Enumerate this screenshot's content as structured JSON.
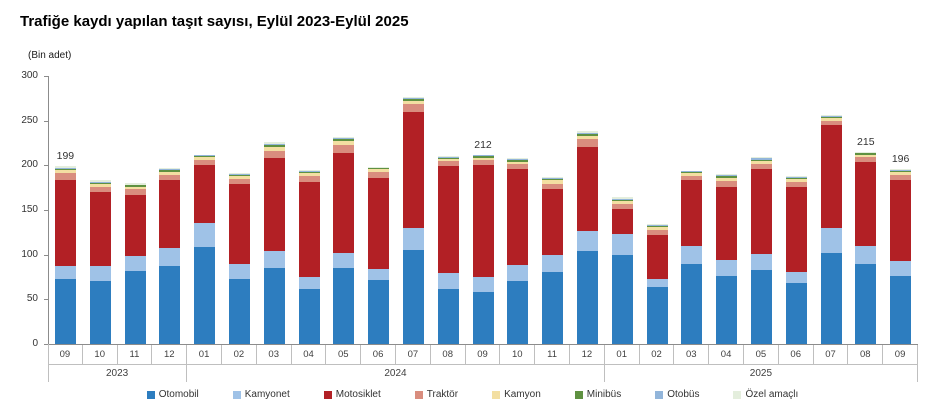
{
  "chart": {
    "title": "Trafiğe kaydı yapılan taşıt sayısı, Eylül 2023-Eylül 2025",
    "unit_label": "(Bin adet)"
  },
  "chart_data": {
    "type": "bar",
    "stacked": true,
    "title": "Trafiğe kaydı yapılan taşıt sayısı, Eylül 2023-Eylül 2025",
    "ylabel": "(Bin adet)",
    "ylim": [
      0,
      300
    ],
    "yticks": [
      0,
      50,
      100,
      150,
      200,
      250,
      300
    ],
    "grid": false,
    "legend_position": "bottom",
    "x_groups": [
      {
        "year": "2023",
        "months": [
          "09",
          "10",
          "11",
          "12"
        ]
      },
      {
        "year": "2024",
        "months": [
          "01",
          "02",
          "03",
          "04",
          "05",
          "06",
          "07",
          "08",
          "09",
          "10",
          "11",
          "12"
        ]
      },
      {
        "year": "2025",
        "months": [
          "01",
          "02",
          "03",
          "04",
          "05",
          "06",
          "07",
          "08",
          "09"
        ]
      }
    ],
    "series": [
      {
        "name": "Otomobil",
        "key": "otomobil",
        "color": "#2d7dbf",
        "values": [
          73,
          70,
          82,
          87,
          108,
          73,
          85,
          61,
          85,
          72,
          105,
          62,
          58,
          70,
          80,
          104,
          100,
          64,
          90,
          76,
          83,
          68,
          102,
          90,
          76
        ]
      },
      {
        "name": "Kamyonet",
        "key": "kamyonet",
        "color": "#9fc2e7",
        "values": [
          14,
          17,
          16,
          20,
          27,
          17,
          19,
          14,
          17,
          12,
          25,
          17,
          17,
          18,
          20,
          22,
          23,
          9,
          20,
          18,
          18,
          12,
          28,
          20,
          17
        ]
      },
      {
        "name": "Motosiklet",
        "key": "motosiklet",
        "color": "#b22025",
        "values": [
          96,
          83,
          69,
          76,
          65,
          89,
          104,
          106,
          112,
          102,
          130,
          120,
          125,
          108,
          73,
          95,
          28,
          49,
          73,
          82,
          95,
          96,
          115,
          93.5,
          90
        ]
      },
      {
        "name": "Traktör",
        "key": "traktor",
        "color": "#d98d7e",
        "values": [
          8,
          6,
          6,
          6,
          5.8,
          6,
          8,
          7,
          9,
          6.5,
          8.5,
          5.5,
          5.5,
          5.5,
          6.5,
          8.5,
          5.5,
          5.5,
          5.5,
          6.5,
          5,
          5.5,
          5,
          6,
          6
        ]
      },
      {
        "name": "Kamyon",
        "key": "kamyon",
        "color": "#f3dfa2",
        "values": [
          3.5,
          3,
          3,
          4,
          3,
          3,
          4.5,
          3.5,
          4,
          3,
          3.5,
          2.5,
          2.8,
          2.7,
          3.5,
          3.7,
          3,
          3,
          2.7,
          3.5,
          3.5,
          3,
          3,
          2.6,
          3
        ]
      },
      {
        "name": "Minibüs",
        "key": "minibus",
        "color": "#5f9141",
        "values": [
          1.5,
          1.5,
          1.5,
          1.5,
          1.6,
          1.5,
          2,
          1.5,
          2,
          1.2,
          2,
          1.5,
          1.7,
          1.8,
          1.8,
          1.8,
          1.8,
          1.5,
          1.3,
          1.8,
          2,
          1.8,
          1.5,
          1.4,
          1.8
        ]
      },
      {
        "name": "Otobüs",
        "key": "otobus",
        "color": "#92b5da",
        "values": [
          1,
          1,
          1,
          1,
          1,
          1,
          1.5,
          1,
          1.5,
          0.8,
          1.5,
          0.8,
          1,
          1,
          1,
          1.5,
          1.2,
          1,
          0.8,
          1,
          1.2,
          1,
          0.8,
          0.8,
          1
        ]
      },
      {
        "name": "Özel amaçlı",
        "key": "ozel-amacli",
        "color": "#e4eedd",
        "values": [
          2,
          2.5,
          1.5,
          1.5,
          0.6,
          0.5,
          2,
          1,
          1.5,
          0.5,
          1.5,
          0.7,
          1,
          1,
          1.2,
          1.5,
          1.5,
          1,
          0.7,
          1.2,
          1.3,
          0.7,
          0.7,
          0.7,
          1.2
        ]
      }
    ],
    "total_labels": [
      {
        "index": 0,
        "text": "199"
      },
      {
        "index": 12,
        "text": "212"
      },
      {
        "index": 23,
        "text": "215"
      },
      {
        "index": 24,
        "text": "196"
      }
    ]
  }
}
